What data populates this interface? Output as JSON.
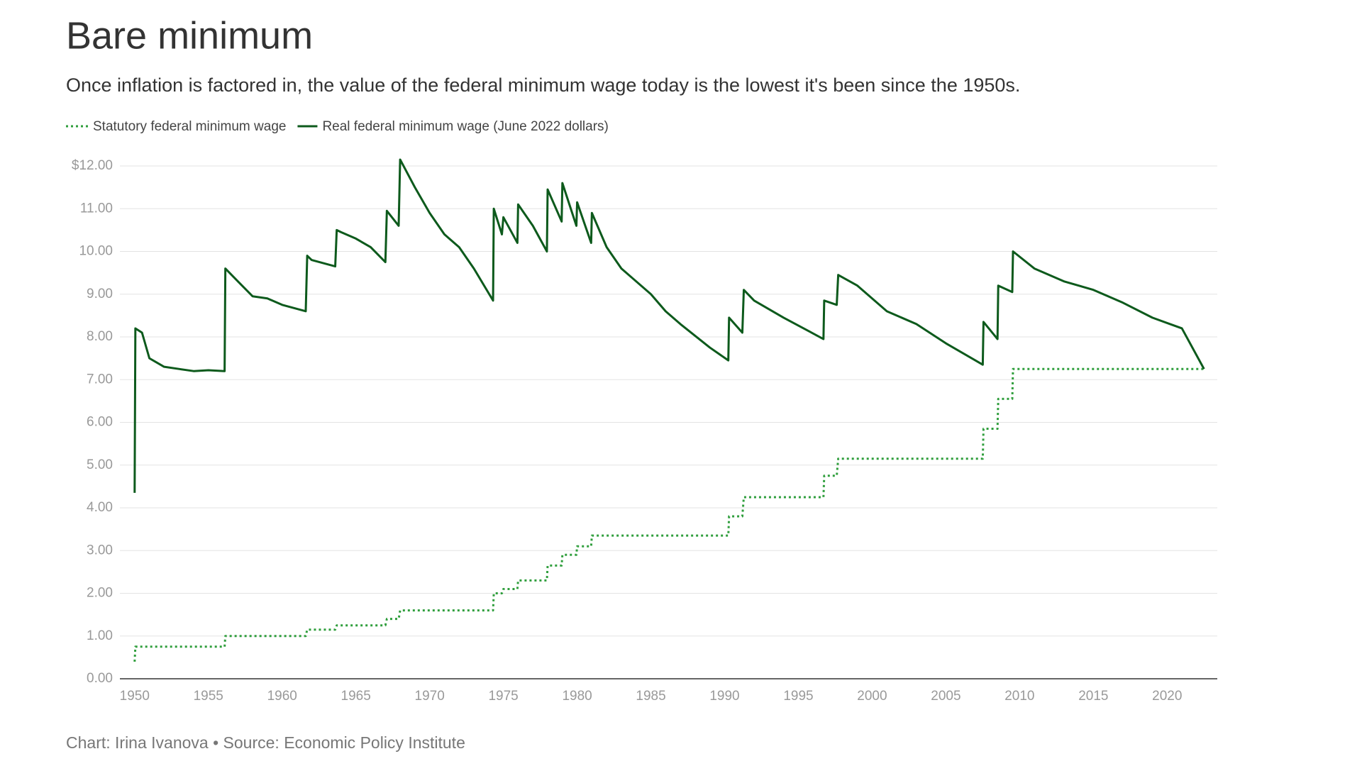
{
  "chart_data": {
    "type": "line",
    "title": "Bare minimum",
    "subtitle": "Once inflation is factored in, the value of the federal minimum wage today is the lowest it's been since the 1950s.",
    "source": "Chart: Irina Ivanova • Source: Economic Policy Institute",
    "grid": true,
    "xlim": [
      1949,
      2023.4
    ],
    "xticks": [
      1950,
      1955,
      1960,
      1965,
      1970,
      1975,
      1980,
      1985,
      1990,
      1995,
      2000,
      2005,
      2010,
      2015,
      2020
    ],
    "ylim": [
      0,
      12
    ],
    "yticks": [
      {
        "value": 0,
        "label": "0.00"
      },
      {
        "value": 1,
        "label": "1.00"
      },
      {
        "value": 2,
        "label": "2.00"
      },
      {
        "value": 3,
        "label": "3.00"
      },
      {
        "value": 4,
        "label": "4.00"
      },
      {
        "value": 5,
        "label": "5.00"
      },
      {
        "value": 6,
        "label": "6.00"
      },
      {
        "value": 7,
        "label": "7.00"
      },
      {
        "value": 8,
        "label": "8.00"
      },
      {
        "value": 9,
        "label": "9.00"
      },
      {
        "value": 10,
        "label": "10.00"
      },
      {
        "value": 11,
        "label": "11.00"
      },
      {
        "value": 12,
        "label": "$12.00"
      }
    ],
    "x": [
      1950.0,
      1950.05,
      1950.5,
      1951,
      1952,
      1953,
      1954,
      1955,
      1956.1,
      1956.15,
      1957,
      1958,
      1959,
      1960,
      1961.6,
      1961.7,
      1962,
      1963.6,
      1963.7,
      1964,
      1965,
      1966,
      1967.0,
      1967.1,
      1967.9,
      1968.0,
      1969,
      1970,
      1971,
      1972,
      1973,
      1974.3,
      1974.35,
      1974.9,
      1975.0,
      1975.95,
      1976.0,
      1977,
      1977.95,
      1978.0,
      1978.95,
      1979.0,
      1979.95,
      1980.0,
      1980.95,
      1981.0,
      1982,
      1983,
      1985,
      1986,
      1987,
      1989,
      1990.25,
      1990.3,
      1991.2,
      1991.3,
      1992,
      1994,
      1996.7,
      1996.75,
      1997.6,
      1997.7,
      1999,
      2001,
      2003,
      2005,
      2007.5,
      2007.55,
      2008.5,
      2008.55,
      2009.5,
      2009.55,
      2011,
      2013,
      2015,
      2017,
      2019,
      2021,
      2022.5
    ],
    "series": [
      {
        "name": "Statutory federal minimum wage",
        "color": "#2f9e3c",
        "style": "dotted",
        "values": [
          0.4,
          0.75,
          0.75,
          0.75,
          0.75,
          0.75,
          0.75,
          0.75,
          0.75,
          1.0,
          1.0,
          1.0,
          1.0,
          1.0,
          1.0,
          1.15,
          1.15,
          1.15,
          1.25,
          1.25,
          1.25,
          1.25,
          1.25,
          1.4,
          1.4,
          1.6,
          1.6,
          1.6,
          1.6,
          1.6,
          1.6,
          1.6,
          2.0,
          2.0,
          2.1,
          2.1,
          2.3,
          2.3,
          2.3,
          2.65,
          2.65,
          2.9,
          2.9,
          3.1,
          3.1,
          3.35,
          3.35,
          3.35,
          3.35,
          3.35,
          3.35,
          3.35,
          3.35,
          3.8,
          3.8,
          4.25,
          4.25,
          4.25,
          4.25,
          4.75,
          4.75,
          5.15,
          5.15,
          5.15,
          5.15,
          5.15,
          5.15,
          5.85,
          5.85,
          6.55,
          6.55,
          7.25,
          7.25,
          7.25,
          7.25,
          7.25,
          7.25,
          7.25,
          7.25
        ]
      },
      {
        "name": "Real federal minimum wage (June 2022 dollars)",
        "color": "#0d5a1c",
        "style": "solid",
        "values": [
          4.35,
          8.2,
          8.1,
          7.5,
          7.3,
          7.25,
          7.2,
          7.22,
          7.2,
          9.6,
          9.3,
          8.95,
          8.9,
          8.75,
          8.6,
          9.9,
          9.8,
          9.65,
          10.5,
          10.45,
          10.3,
          10.1,
          9.75,
          10.95,
          10.6,
          12.15,
          11.5,
          10.9,
          10.4,
          10.1,
          9.6,
          8.85,
          11.0,
          10.4,
          10.8,
          10.2,
          11.1,
          10.6,
          10.0,
          11.45,
          10.7,
          11.6,
          10.6,
          11.15,
          10.2,
          10.9,
          10.1,
          9.6,
          9.0,
          8.6,
          8.3,
          7.75,
          7.45,
          8.45,
          8.1,
          9.1,
          8.85,
          8.45,
          7.95,
          8.85,
          8.75,
          9.45,
          9.2,
          8.6,
          8.3,
          7.85,
          7.35,
          8.35,
          7.95,
          9.2,
          9.05,
          10.0,
          9.6,
          9.3,
          9.1,
          8.8,
          8.45,
          8.2,
          7.25
        ]
      }
    ]
  }
}
